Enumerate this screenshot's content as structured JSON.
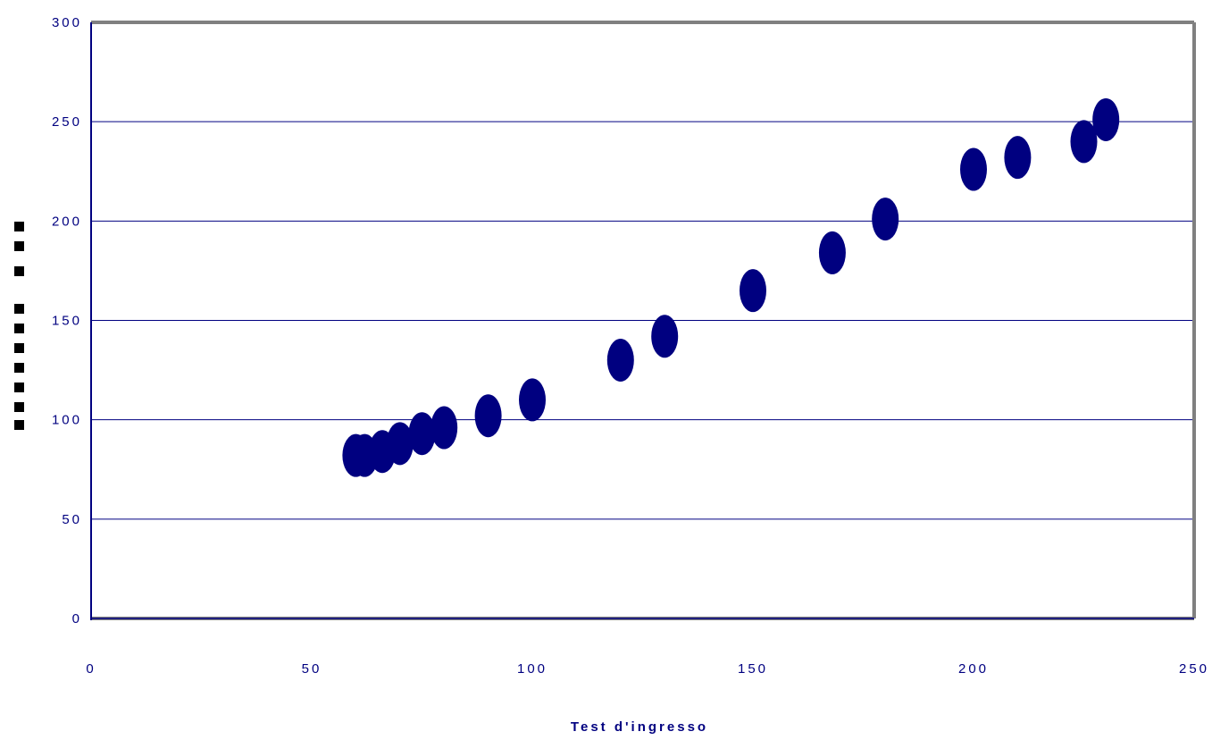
{
  "chart_data": {
    "type": "scatter",
    "title": "",
    "xlabel": "Test d'ingresso",
    "ylabel": "",
    "xlim": [
      0,
      250
    ],
    "ylim": [
      0,
      300
    ],
    "xticks": [
      "0",
      "50",
      "100",
      "150",
      "200",
      "250"
    ],
    "yticks": [
      "0",
      "50",
      "100",
      "150",
      "200",
      "250",
      "300"
    ],
    "grid": "horizontal",
    "legend": "none",
    "colors": {
      "marker": "#000080",
      "text": "#000080",
      "gridline": "#000080",
      "frame": "#808080",
      "ylabel_glyphs": "#000000"
    },
    "series": [
      {
        "points": [
          {
            "x": 60,
            "y": 82
          },
          {
            "x": 62,
            "y": 82
          },
          {
            "x": 66,
            "y": 84
          },
          {
            "x": 70,
            "y": 88
          },
          {
            "x": 75,
            "y": 93
          },
          {
            "x": 80,
            "y": 96
          },
          {
            "x": 90,
            "y": 102
          },
          {
            "x": 100,
            "y": 110
          },
          {
            "x": 120,
            "y": 130
          },
          {
            "x": 130,
            "y": 142
          },
          {
            "x": 150,
            "y": 165
          },
          {
            "x": 168,
            "y": 184
          },
          {
            "x": 180,
            "y": 201
          },
          {
            "x": 200,
            "y": 226
          },
          {
            "x": 210,
            "y": 232
          },
          {
            "x": 225,
            "y": 240
          },
          {
            "x": 230,
            "y": 251
          }
        ]
      }
    ]
  }
}
